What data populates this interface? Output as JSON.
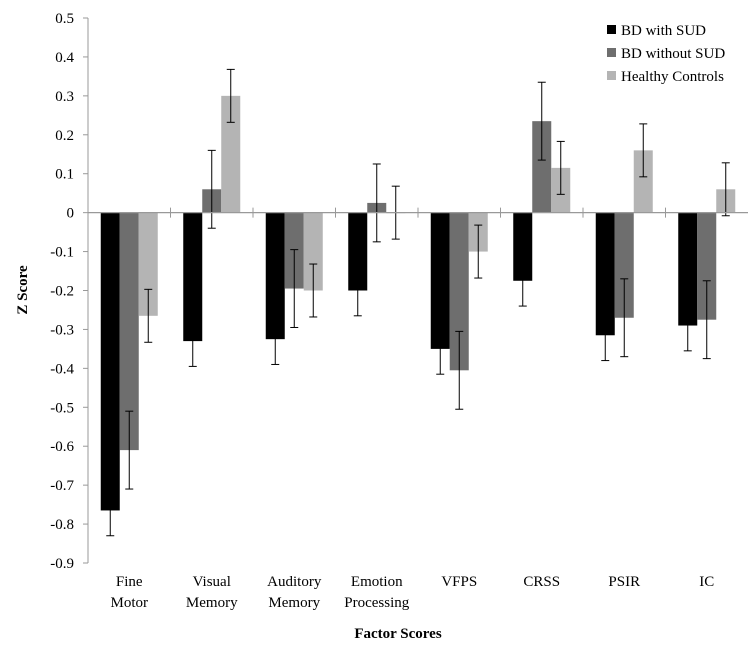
{
  "chart_data": {
    "type": "bar",
    "xlabel": "Factor Scores",
    "ylabel": "Z Score",
    "ylim": [
      -0.9,
      0.5
    ],
    "yticks": [
      0.5,
      0.4,
      0.3,
      0.2,
      0.1,
      0,
      -0.1,
      -0.2,
      -0.3,
      -0.4,
      -0.5,
      -0.6,
      -0.7,
      -0.8,
      -0.9
    ],
    "ytick_labels": [
      "0.5",
      "0.4",
      "0.3",
      "0.2",
      "0.1",
      "0",
      "-0.1",
      "-0.2",
      "-0.3",
      "-0.4",
      "-0.5",
      "-0.6",
      "-0.7",
      "-0.8",
      "-0.9"
    ],
    "categories": [
      [
        "Fine",
        "Motor"
      ],
      [
        "Visual",
        "Memory"
      ],
      [
        "Auditory",
        "Memory"
      ],
      [
        "Emotion",
        "Processing"
      ],
      [
        "VFPS"
      ],
      [
        "CRSS"
      ],
      [
        "PSIR"
      ],
      [
        "IC"
      ]
    ],
    "series": [
      {
        "name": "BD with SUD",
        "color": "#000000",
        "values": [
          -0.765,
          -0.33,
          -0.325,
          -0.2,
          -0.35,
          -0.175,
          -0.315,
          -0.29
        ],
        "errors": [
          0.065,
          0.065,
          0.065,
          0.065,
          0.065,
          0.065,
          0.065,
          0.065
        ]
      },
      {
        "name": "BD without SUD",
        "color": "#6e6e6e",
        "values": [
          -0.61,
          0.06,
          -0.195,
          0.025,
          -0.405,
          0.235,
          -0.27,
          -0.275
        ],
        "errors": [
          0.1,
          0.1,
          0.1,
          0.1,
          0.1,
          0.1,
          0.1,
          0.1
        ]
      },
      {
        "name": "Healthy Controls",
        "color": "#b4b4b4",
        "values": [
          -0.265,
          0.3,
          -0.2,
          0.0,
          -0.1,
          0.115,
          0.16,
          0.06
        ],
        "errors": [
          0.068,
          0.068,
          0.068,
          0.068,
          0.068,
          0.068,
          0.068,
          0.068
        ]
      }
    ],
    "legend_position": "top-right",
    "grid": false
  }
}
